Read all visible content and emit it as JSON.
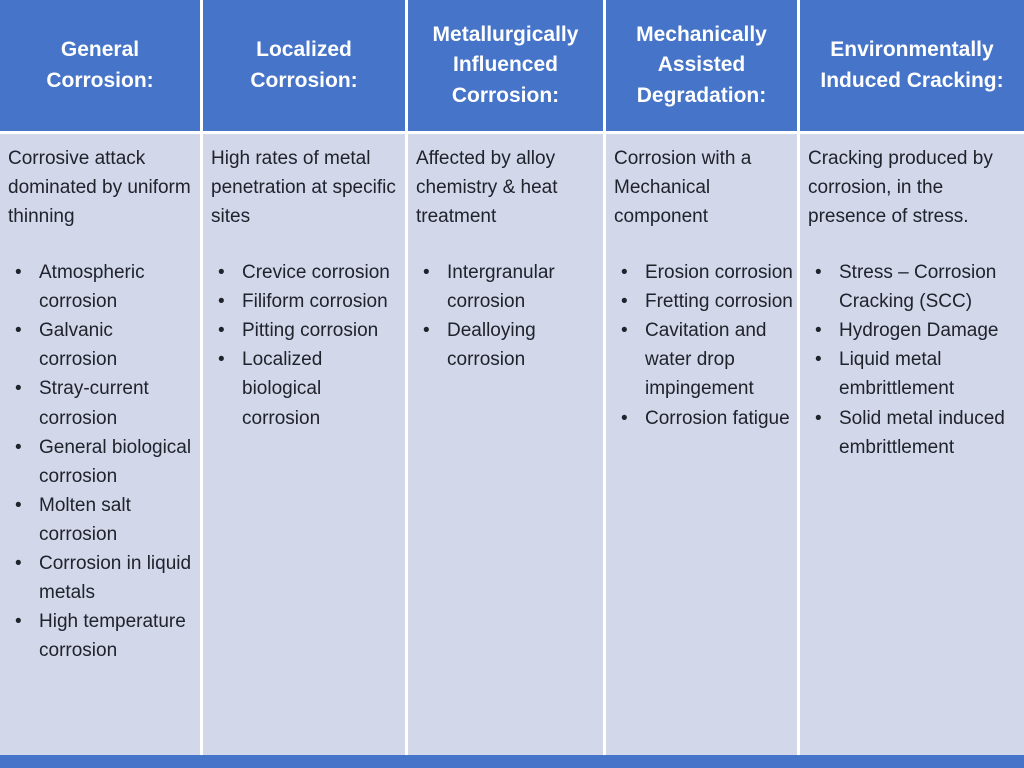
{
  "table": {
    "columns": [
      {
        "header": "General Corrosion:",
        "description": "Corrosive attack dominated by uniform thinning",
        "items": [
          "Atmospheric corrosion",
          "Galvanic corrosion",
          "Stray-current corrosion",
          "General biological corrosion",
          "Molten salt corrosion",
          "Corrosion in liquid metals",
          "High temperature corrosion"
        ]
      },
      {
        "header": "Localized Corrosion:",
        "description": "High rates of metal penetration at specific sites",
        "items": [
          "Crevice corrosion",
          "Filiform corrosion",
          "Pitting corrosion",
          "Localized biological corrosion"
        ]
      },
      {
        "header": "Metallurgically Influenced Corrosion:",
        "description": "Affected by alloy chemistry & heat treatment",
        "items": [
          "Intergranular corrosion",
          "Dealloying corrosion"
        ]
      },
      {
        "header": "Mechanically Assisted Degradation:",
        "description": "Corrosion with a Mechanical component",
        "items": [
          "Erosion corrosion",
          "Fretting corrosion",
          "Cavitation and water drop impingement",
          "Corrosion fatigue"
        ]
      },
      {
        "header": "Environmentally Induced Cracking:",
        "description": "Cracking produced by corrosion, in the presence of stress.",
        "items": [
          "Stress – Corrosion Cracking (SCC)",
          "Hydrogen Damage",
          "Liquid metal embrittlement",
          "Solid metal induced embrittlement"
        ]
      }
    ],
    "colors": {
      "header_bg": "#4574C8",
      "header_text": "#FFFFFF",
      "body_bg": "#D2D7E9",
      "body_text": "#20222C",
      "divider": "#FFFFFF",
      "footer_bar": "#4574C8"
    }
  }
}
